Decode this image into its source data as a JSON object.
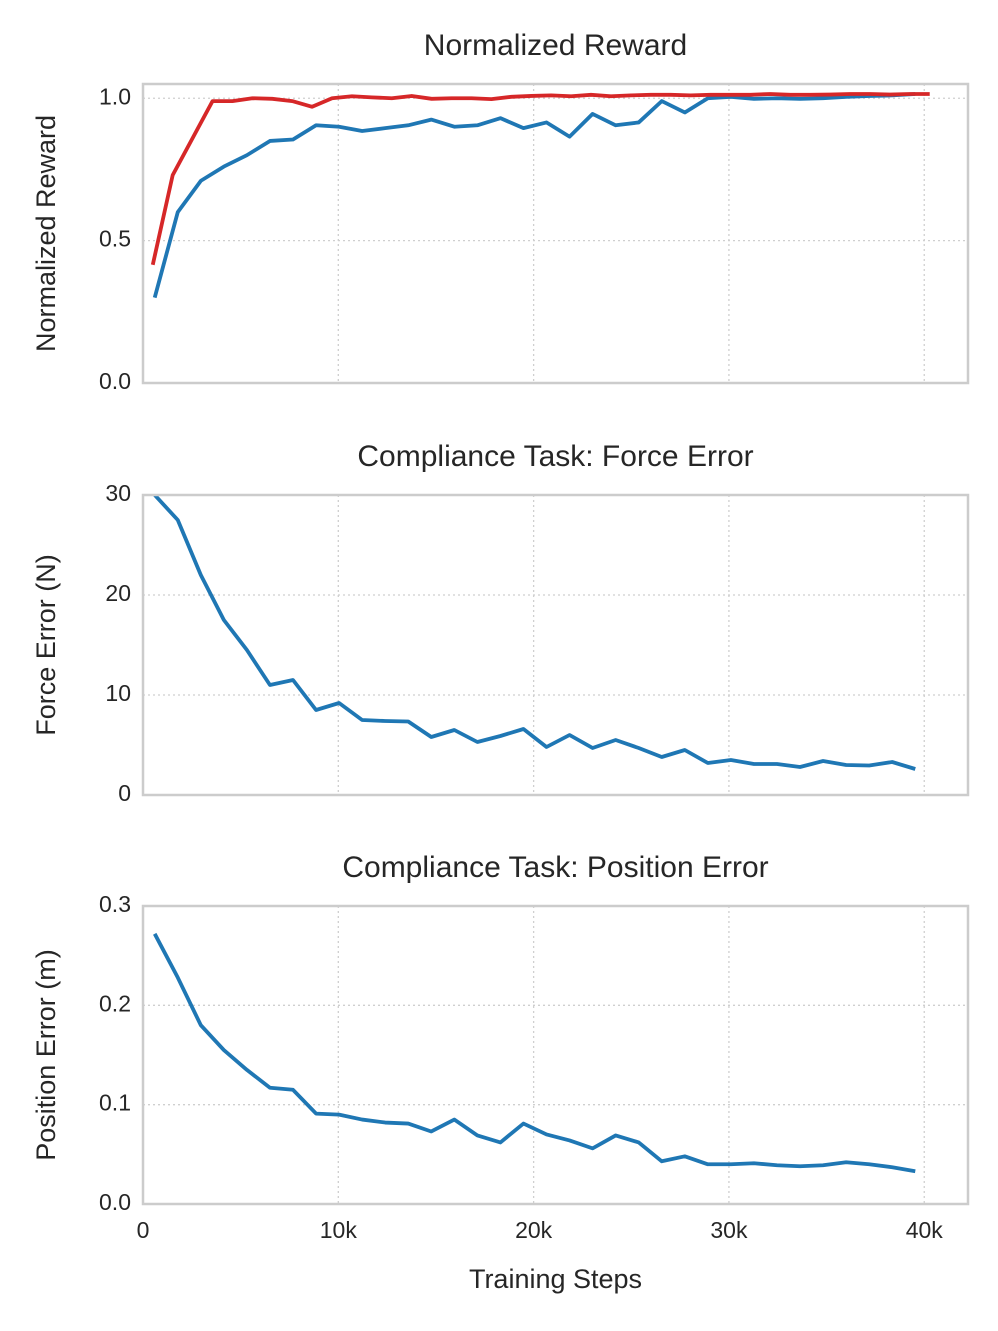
{
  "chart_data": [
    {
      "type": "line",
      "title": "Normalized Reward",
      "ylabel": "Normalized Reward",
      "sharex": true,
      "grid": true,
      "xlim": [
        0,
        42240
      ],
      "ylim": [
        0,
        1.05
      ],
      "xticks": [
        0,
        10000,
        20000,
        30000,
        40000
      ],
      "yticks": [
        {
          "value": 0,
          "label": "0.0"
        },
        {
          "value": 0.5,
          "label": "0.5"
        },
        {
          "value": 1,
          "label": "1.0"
        }
      ],
      "series": [
        {
          "color": "#1f77b4",
          "x": [
            600,
            1780,
            2960,
            4140,
            5320,
            6500,
            7680,
            8860,
            10040,
            11220,
            12400,
            13580,
            14760,
            15940,
            17120,
            18300,
            19480,
            20660,
            21840,
            23020,
            24200,
            25380,
            26560,
            27740,
            28920,
            30100,
            31280,
            32460,
            33640,
            34820,
            36000,
            37180,
            38360,
            39540
          ],
          "values": [
            0.3,
            0.6,
            0.71,
            0.76,
            0.8,
            0.85,
            0.855,
            0.905,
            0.9,
            0.885,
            0.895,
            0.905,
            0.925,
            0.9,
            0.905,
            0.93,
            0.895,
            0.915,
            0.865,
            0.945,
            0.905,
            0.915,
            0.99,
            0.95,
            1.0,
            1.005,
            0.998,
            1.0,
            0.998,
            1.0,
            1.005,
            1.008,
            1.01,
            1.015
          ]
        },
        {
          "color": "#d62728",
          "x": [
            500,
            1520,
            2540,
            3560,
            4580,
            5600,
            6620,
            7640,
            8660,
            9680,
            10700,
            11720,
            12740,
            13760,
            14780,
            15800,
            16820,
            17840,
            18860,
            19880,
            20900,
            21920,
            22940,
            23960,
            24980,
            26000,
            27020,
            28040,
            29060,
            30080,
            31100,
            32120,
            33140,
            34160,
            35180,
            36200,
            37220,
            38240,
            39260,
            40280
          ],
          "values": [
            0.415,
            0.73,
            0.86,
            0.99,
            0.99,
            1.0,
            0.998,
            0.99,
            0.97,
            1.0,
            1.007,
            1.003,
            1.0,
            1.008,
            0.998,
            1.0,
            1.0,
            0.997,
            1.005,
            1.008,
            1.01,
            1.007,
            1.012,
            1.007,
            1.01,
            1.012,
            1.012,
            1.01,
            1.012,
            1.012,
            1.012,
            1.015,
            1.012,
            1.012,
            1.013,
            1.015,
            1.015,
            1.013,
            1.015,
            1.015
          ]
        }
      ]
    },
    {
      "type": "line",
      "title": "Compliance Task: Force Error",
      "ylabel": "Force Error (N)",
      "sharex": true,
      "grid": true,
      "xlim": [
        0,
        42240
      ],
      "ylim": [
        0,
        30
      ],
      "xticks": [
        0,
        10000,
        20000,
        30000,
        40000
      ],
      "yticks": [
        0,
        10,
        20,
        30
      ],
      "series": [
        {
          "color": "#1f77b4",
          "x": [
            600,
            1780,
            2960,
            4140,
            5320,
            6500,
            7680,
            8860,
            10040,
            11220,
            12400,
            13580,
            14760,
            15940,
            17120,
            18300,
            19480,
            20660,
            21840,
            23020,
            24200,
            25380,
            26560,
            27740,
            28920,
            30100,
            31280,
            32460,
            33640,
            34820,
            36000,
            37180,
            38360,
            39540
          ],
          "values": [
            30,
            27.5,
            22,
            17.5,
            14.5,
            11,
            11.5,
            8.5,
            9.2,
            7.5,
            7.4,
            7.35,
            5.8,
            6.5,
            5.3,
            5.9,
            6.6,
            4.8,
            6.0,
            4.7,
            5.5,
            4.7,
            3.8,
            4.5,
            3.2,
            3.5,
            3.1,
            3.1,
            2.8,
            3.4,
            3.0,
            2.95,
            3.3,
            2.6
          ]
        }
      ]
    },
    {
      "type": "line",
      "title": "Compliance Task: Position Error",
      "ylabel": "Position Error (m)",
      "xlabel": "Training Steps",
      "grid": true,
      "xlim": [
        0,
        42240
      ],
      "ylim": [
        0,
        0.3
      ],
      "xticks": [
        0,
        {
          "value": 10000,
          "label": "10k"
        },
        {
          "value": 20000,
          "label": "20k"
        },
        {
          "value": 30000,
          "label": "30k"
        },
        {
          "value": 40000,
          "label": "40k"
        }
      ],
      "yticks": [
        {
          "value": 0,
          "label": "0.0"
        },
        0.1,
        0.2,
        0.3
      ],
      "series": [
        {
          "color": "#1f77b4",
          "x": [
            600,
            1780,
            2960,
            4140,
            5320,
            6500,
            7680,
            8860,
            10040,
            11220,
            12400,
            13580,
            14760,
            15940,
            17120,
            18300,
            19480,
            20660,
            21840,
            23020,
            24200,
            25380,
            26560,
            27740,
            28920,
            30100,
            31280,
            32460,
            33640,
            34820,
            36000,
            37180,
            38360,
            39540
          ],
          "values": [
            0.272,
            0.228,
            0.18,
            0.155,
            0.135,
            0.117,
            0.115,
            0.091,
            0.09,
            0.085,
            0.082,
            0.081,
            0.073,
            0.085,
            0.069,
            0.062,
            0.081,
            0.07,
            0.064,
            0.056,
            0.069,
            0.062,
            0.043,
            0.048,
            0.04,
            0.04,
            0.041,
            0.039,
            0.038,
            0.039,
            0.042,
            0.04,
            0.037,
            0.033
          ]
        }
      ]
    }
  ]
}
